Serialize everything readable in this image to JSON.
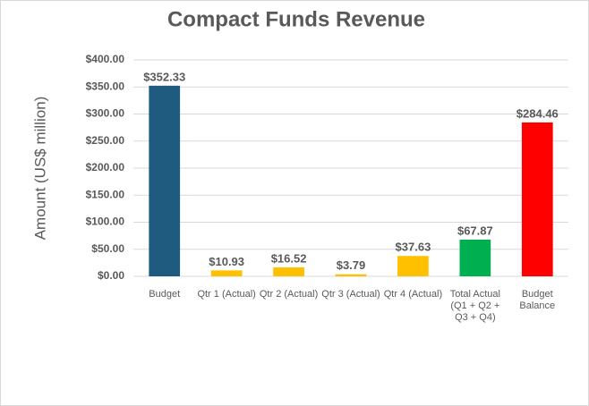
{
  "chart_data": {
    "type": "bar",
    "title": "Compact Funds Revenue",
    "y_label": "Amount (US$ million)",
    "categories": [
      "Budget",
      "Qtr 1 (Actual)",
      "Qtr 2 (Actual)",
      "Qtr 3 (Actual)",
      "Qtr 4 (Actual)",
      "Total Actual (Q1 + Q2 + Q3 + Q4)",
      "Budget Balance"
    ],
    "values": [
      352.33,
      10.93,
      16.52,
      3.79,
      37.63,
      67.87,
      284.46
    ],
    "value_labels": [
      "$352.33",
      "$10.93",
      "$16.52",
      "$3.79",
      "$37.63",
      "$67.87",
      "$284.46"
    ],
    "colors": [
      "#1f5b7e",
      "#ffc000",
      "#ffc000",
      "#ffc000",
      "#ffc000",
      "#00b050",
      "#ff0000"
    ],
    "ylim": [
      0,
      400
    ],
    "yticks": [
      {
        "value": 0,
        "label": "$0.00"
      },
      {
        "value": 50,
        "label": "$50.00"
      },
      {
        "value": 100,
        "label": "$100.00"
      },
      {
        "value": 150,
        "label": "$150.00"
      },
      {
        "value": 200,
        "label": "$200.00"
      },
      {
        "value": 250,
        "label": "$250.00"
      },
      {
        "value": 300,
        "label": "$300.00"
      },
      {
        "value": 350,
        "label": "$350.00"
      },
      {
        "value": 400,
        "label": "$400.00"
      }
    ],
    "grid": true
  }
}
